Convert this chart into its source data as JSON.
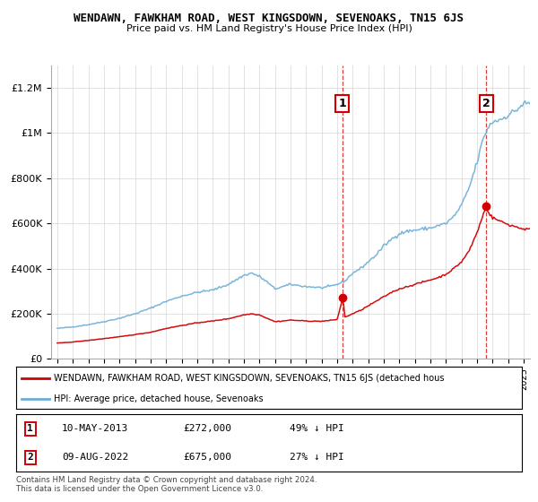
{
  "title": "WENDAWN, FAWKHAM ROAD, WEST KINGSDOWN, SEVENOAKS, TN15 6JS",
  "subtitle": "Price paid vs. HM Land Registry's House Price Index (HPI)",
  "ylabel_ticks": [
    "£0",
    "£200K",
    "£400K",
    "£600K",
    "£800K",
    "£1M",
    "£1.2M"
  ],
  "ytick_values": [
    0,
    200000,
    400000,
    600000,
    800000,
    1000000,
    1200000
  ],
  "ylim": [
    0,
    1300000
  ],
  "hpi_color": "#6baed6",
  "price_color": "#d00000",
  "hpi_pts": [
    [
      1995.0,
      135000
    ],
    [
      1996.0,
      142000
    ],
    [
      1997.0,
      152000
    ],
    [
      1998.0,
      165000
    ],
    [
      1999.0,
      180000
    ],
    [
      2000.0,
      200000
    ],
    [
      2001.0,
      225000
    ],
    [
      2002.0,
      255000
    ],
    [
      2003.0,
      278000
    ],
    [
      2004.0,
      295000
    ],
    [
      2005.0,
      305000
    ],
    [
      2006.0,
      330000
    ],
    [
      2007.0,
      370000
    ],
    [
      2007.5,
      380000
    ],
    [
      2008.0,
      365000
    ],
    [
      2008.5,
      340000
    ],
    [
      2009.0,
      310000
    ],
    [
      2009.5,
      320000
    ],
    [
      2010.0,
      330000
    ],
    [
      2010.5,
      325000
    ],
    [
      2011.0,
      320000
    ],
    [
      2011.5,
      318000
    ],
    [
      2012.0,
      315000
    ],
    [
      2012.5,
      320000
    ],
    [
      2013.0,
      330000
    ],
    [
      2013.5,
      345000
    ],
    [
      2014.0,
      380000
    ],
    [
      2014.5,
      400000
    ],
    [
      2015.0,
      430000
    ],
    [
      2015.5,
      460000
    ],
    [
      2016.0,
      500000
    ],
    [
      2016.5,
      530000
    ],
    [
      2017.0,
      555000
    ],
    [
      2017.5,
      565000
    ],
    [
      2018.0,
      570000
    ],
    [
      2018.5,
      575000
    ],
    [
      2019.0,
      580000
    ],
    [
      2019.5,
      590000
    ],
    [
      2020.0,
      600000
    ],
    [
      2020.5,
      630000
    ],
    [
      2021.0,
      680000
    ],
    [
      2021.5,
      760000
    ],
    [
      2022.0,
      870000
    ],
    [
      2022.33,
      960000
    ],
    [
      2022.67,
      1020000
    ],
    [
      2023.0,
      1050000
    ],
    [
      2023.5,
      1060000
    ],
    [
      2024.0,
      1080000
    ],
    [
      2024.5,
      1100000
    ],
    [
      2025.0,
      1130000
    ]
  ],
  "price_pts": [
    [
      1995.0,
      70000
    ],
    [
      1996.0,
      75000
    ],
    [
      1997.0,
      82000
    ],
    [
      1998.0,
      90000
    ],
    [
      1999.0,
      98000
    ],
    [
      2000.0,
      108000
    ],
    [
      2001.0,
      118000
    ],
    [
      2002.0,
      135000
    ],
    [
      2003.0,
      148000
    ],
    [
      2004.0,
      160000
    ],
    [
      2005.0,
      168000
    ],
    [
      2006.0,
      178000
    ],
    [
      2007.0,
      195000
    ],
    [
      2007.5,
      200000
    ],
    [
      2008.0,
      195000
    ],
    [
      2008.5,
      180000
    ],
    [
      2009.0,
      165000
    ],
    [
      2009.5,
      168000
    ],
    [
      2010.0,
      172000
    ],
    [
      2010.5,
      170000
    ],
    [
      2011.0,
      168000
    ],
    [
      2011.5,
      167000
    ],
    [
      2012.0,
      167000
    ],
    [
      2012.5,
      170000
    ],
    [
      2013.0,
      175000
    ],
    [
      2013.37,
      272000
    ],
    [
      2013.5,
      185000
    ],
    [
      2014.0,
      200000
    ],
    [
      2014.5,
      215000
    ],
    [
      2015.0,
      235000
    ],
    [
      2015.5,
      255000
    ],
    [
      2016.0,
      275000
    ],
    [
      2016.5,
      295000
    ],
    [
      2017.0,
      310000
    ],
    [
      2017.5,
      320000
    ],
    [
      2018.0,
      330000
    ],
    [
      2018.5,
      340000
    ],
    [
      2019.0,
      350000
    ],
    [
      2019.5,
      360000
    ],
    [
      2020.0,
      375000
    ],
    [
      2020.5,
      400000
    ],
    [
      2021.0,
      430000
    ],
    [
      2021.5,
      480000
    ],
    [
      2022.0,
      560000
    ],
    [
      2022.58,
      675000
    ],
    [
      2022.75,
      645000
    ],
    [
      2023.0,
      625000
    ],
    [
      2023.5,
      610000
    ],
    [
      2024.0,
      595000
    ],
    [
      2024.5,
      585000
    ],
    [
      2025.0,
      575000
    ]
  ],
  "sale1_x": 2013.3333,
  "sale1_y": 272000,
  "sale2_x": 2022.5833,
  "sale2_y": 675000,
  "legend_label_price": "WENDAWN, FAWKHAM ROAD, WEST KINGSDOWN, SEVENOAKS, TN15 6JS (detached hous",
  "legend_label_hpi": "HPI: Average price, detached house, Sevenoaks",
  "footer": "Contains HM Land Registry data © Crown copyright and database right 2024.\nThis data is licensed under the Open Government Licence v3.0.",
  "background_color": "#ffffff",
  "grid_color": "#cccccc",
  "xmin": 1994.6,
  "xmax": 2025.4
}
